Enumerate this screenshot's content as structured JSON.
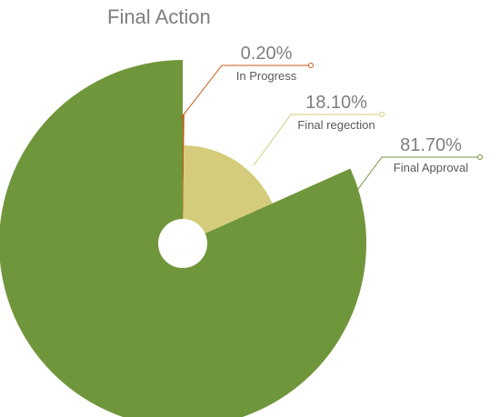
{
  "chart_data": {
    "type": "pie",
    "style": "exploded-donut",
    "title": "Final Action",
    "slices": [
      {
        "name": "In Progress",
        "value": 0.2,
        "label": "0.20%",
        "color": "#c55a11",
        "leader_color": "#c55a11"
      },
      {
        "name": "Final regection",
        "value": 18.1,
        "label": "18.10%",
        "color": "#d4cc7a",
        "leader_color": "#d4cc7a"
      },
      {
        "name": "Final Approval",
        "value": 81.7,
        "label": "81.70%",
        "color": "#70963b",
        "leader_color": "#70963b"
      }
    ],
    "legend": "none"
  }
}
